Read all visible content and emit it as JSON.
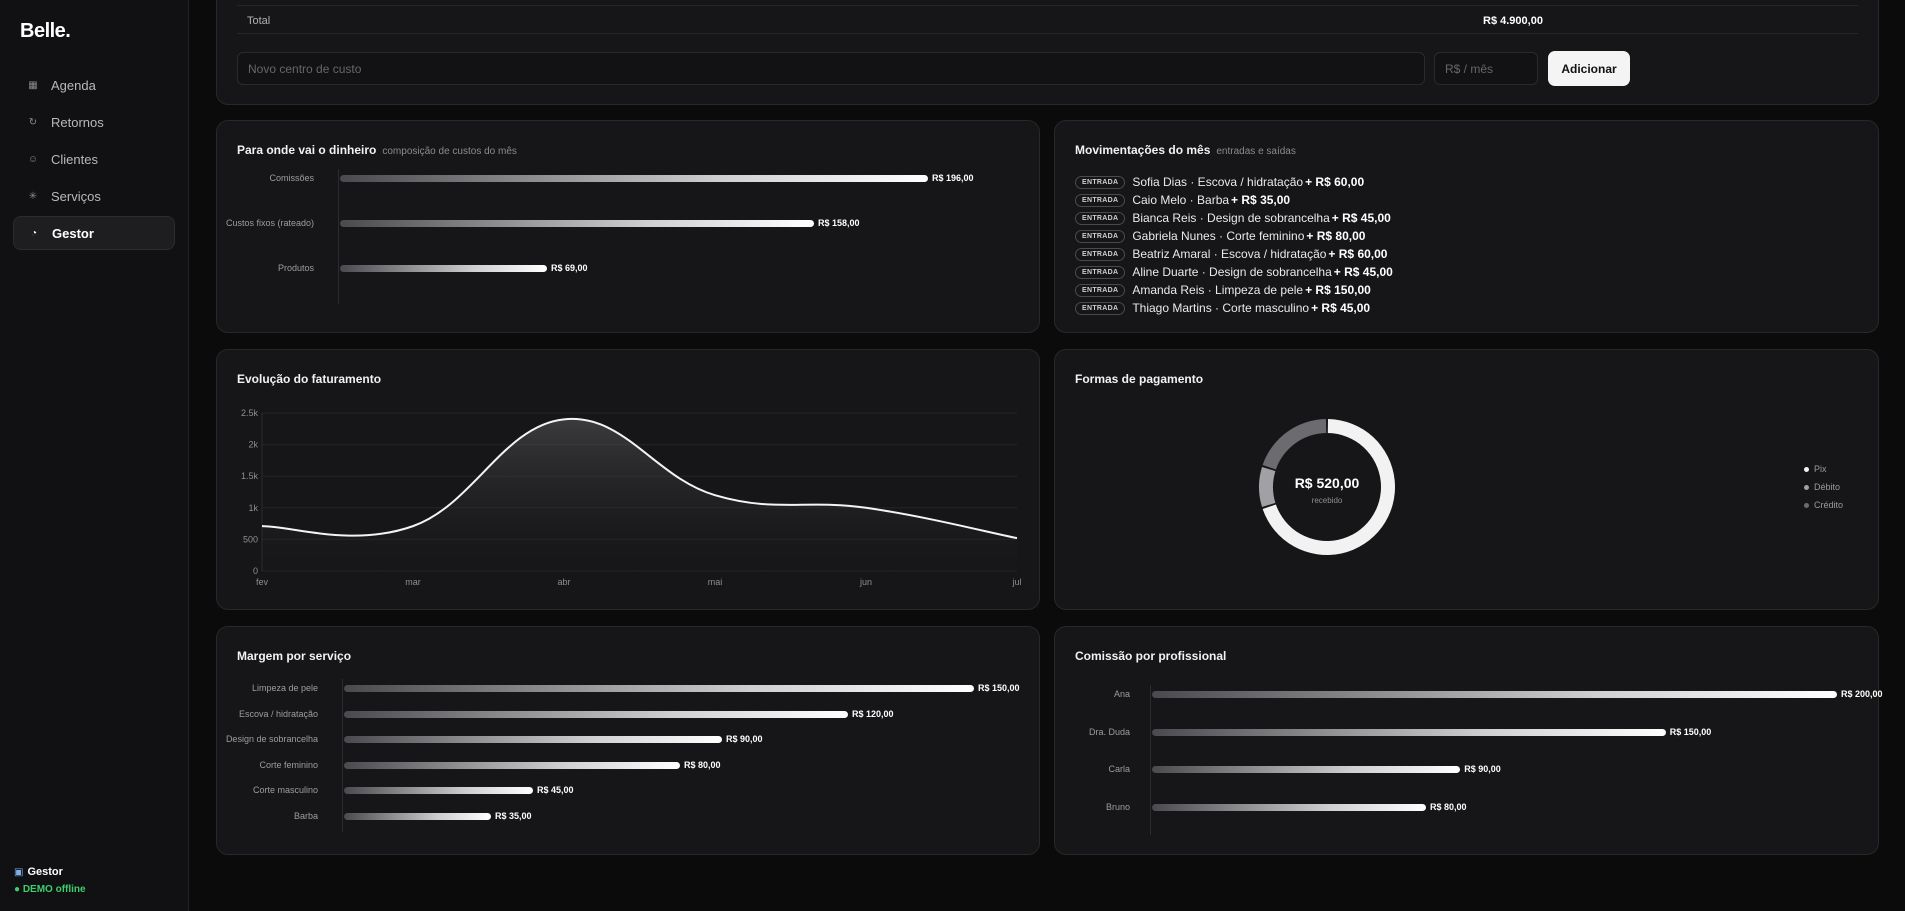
{
  "brand": "Belle.",
  "nav": [
    {
      "icon": "calendar-icon",
      "glyph": "▦",
      "label": "Agenda",
      "active": false
    },
    {
      "icon": "refresh-icon",
      "glyph": "↻",
      "label": "Retornos",
      "active": false
    },
    {
      "icon": "users-icon",
      "glyph": "☺",
      "label": "Clientes",
      "active": false
    },
    {
      "icon": "sparkle-icon",
      "glyph": "✳",
      "label": "Serviços",
      "active": false
    },
    {
      "icon": "gauge-icon",
      "glyph": "◔",
      "label": "Gestor",
      "active": true
    }
  ],
  "sidebar_footer": {
    "user": "Gestor",
    "status": "● DEMO offline"
  },
  "cost_centers": {
    "total_label": "Total",
    "total_value": "R$ 4.900,00",
    "name_placeholder": "Novo centro de custo",
    "value_placeholder": "R$ / mês",
    "add_label": "Adicionar"
  },
  "cost_composition": {
    "title": "Para onde vai o dinheiro",
    "subtitle": "composição de custos do mês",
    "chart_data": {
      "type": "bar",
      "orientation": "horizontal",
      "categories": [
        "Comissões",
        "Custos fixos (rateado)",
        "Produtos"
      ],
      "values": [
        196,
        158,
        69
      ],
      "value_labels": [
        "R$ 196,00",
        "R$ 158,00",
        "R$ 69,00"
      ],
      "xlim": [
        0,
        196
      ]
    }
  },
  "movements": {
    "title": "Movimentações do mês",
    "subtitle": "entradas e saídas",
    "badge": "ENTRADA",
    "items": [
      {
        "desc": "Sofia Dias · Escova / hidratação",
        "amount": "+ R$ 60,00"
      },
      {
        "desc": "Caio Melo · Barba",
        "amount": "+ R$ 35,00"
      },
      {
        "desc": "Bianca Reis · Design de sobrancelha",
        "amount": "+ R$ 45,00"
      },
      {
        "desc": "Gabriela Nunes · Corte feminino",
        "amount": "+ R$ 80,00"
      },
      {
        "desc": "Beatriz Amaral · Escova / hidratação",
        "amount": "+ R$ 60,00"
      },
      {
        "desc": "Aline Duarte · Design de sobrancelha",
        "amount": "+ R$ 45,00"
      },
      {
        "desc": "Amanda Reis · Limpeza de pele",
        "amount": "+ R$ 150,00"
      },
      {
        "desc": "Thiago Martins · Corte masculino",
        "amount": "+ R$ 45,00"
      }
    ]
  },
  "revenue": {
    "title": "Evolução do faturamento",
    "chart_data": {
      "type": "area",
      "x": [
        "fev",
        "mar",
        "abr",
        "mai",
        "jun",
        "jul"
      ],
      "y": [
        710,
        710,
        2400,
        1200,
        1000,
        520
      ],
      "ylim": [
        0,
        2500
      ],
      "yticks": [
        0,
        500,
        1000,
        1500,
        2000,
        2500
      ],
      "ytick_labels": [
        "0",
        "500",
        "1k",
        "1.5k",
        "2k",
        "2.5k"
      ],
      "grid": true
    }
  },
  "payment": {
    "title": "Formas de pagamento",
    "center_value": "R$ 520,00",
    "center_label": "recebido",
    "chart_data": {
      "type": "pie",
      "donut": true,
      "labels": [
        "Pix",
        "Débito",
        "Crédito"
      ],
      "values": [
        70,
        10,
        20
      ],
      "colors": [
        "#f2f2f3",
        "#a0a0a5",
        "#6b6b70"
      ],
      "legend": "right"
    }
  },
  "service_margin": {
    "title": "Margem por serviço",
    "chart_data": {
      "type": "bar",
      "orientation": "horizontal",
      "categories": [
        "Limpeza de pele",
        "Escova / hidratação",
        "Design de sobrancelha",
        "Corte feminino",
        "Corte masculino",
        "Barba"
      ],
      "values": [
        150,
        120,
        90,
        80,
        45,
        35
      ],
      "value_labels": [
        "R$ 150,00",
        "R$ 120,00",
        "R$ 90,00",
        "R$ 80,00",
        "R$ 45,00",
        "R$ 35,00"
      ],
      "xlim": [
        0,
        150
      ]
    }
  },
  "commission": {
    "title": "Comissão por profissional",
    "chart_data": {
      "type": "bar",
      "orientation": "horizontal",
      "categories": [
        "Ana",
        "Dra. Duda",
        "Carla",
        "Bruno"
      ],
      "values": [
        200,
        150,
        90,
        80
      ],
      "value_labels": [
        "R$ 200,00",
        "R$ 150,00",
        "R$ 90,00",
        "R$ 80,00"
      ],
      "xlim": [
        0,
        200
      ]
    }
  }
}
